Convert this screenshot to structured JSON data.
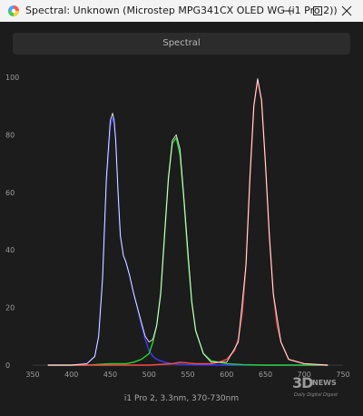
{
  "window": {
    "title": "Spectral: Unknown (Microstep MPG341CX OLED WG (i1 Pro 2))",
    "icon": "rainbow-circle-icon"
  },
  "tab": {
    "label": "Spectral"
  },
  "watermark": {
    "logo": "3D",
    "logo_suffix": "NEWS",
    "tagline": "Daily Digital Digest"
  },
  "chart_data": {
    "type": "line",
    "xlabel": "i1 Pro 2, 3.3nm, 370-730nm",
    "ylabel": "",
    "xlim": [
      350,
      750
    ],
    "ylim": [
      0,
      100
    ],
    "x_ticks": [
      350,
      400,
      450,
      500,
      550,
      600,
      650,
      700,
      750
    ],
    "y_ticks": [
      0,
      20,
      40,
      60,
      80,
      100
    ],
    "grid": false,
    "series": [
      {
        "color": "#ffffff",
        "x": [
          370,
          400,
          420,
          430,
          435,
          440,
          445,
          450,
          453,
          455,
          457,
          460,
          463,
          467,
          470,
          475,
          480,
          485,
          490,
          495,
          500,
          505,
          510,
          515,
          520,
          525,
          530,
          535,
          540,
          545,
          550,
          555,
          560,
          570,
          580,
          600,
          615,
          625,
          630,
          635,
          640,
          645,
          650,
          655,
          660,
          670,
          680,
          700,
          730
        ],
        "y": [
          0,
          0,
          0.5,
          3,
          10,
          30,
          65,
          85,
          87.5,
          85,
          78,
          60,
          45,
          38,
          36,
          31,
          25,
          20,
          15,
          10,
          8,
          9,
          14,
          25,
          45,
          65,
          78,
          80,
          75,
          58,
          40,
          22,
          12,
          4,
          1,
          1,
          8,
          35,
          65,
          90,
          99.5,
          92,
          70,
          45,
          25,
          8,
          2,
          0.5,
          0
        ]
      },
      {
        "color": "#3b3bff",
        "x": [
          370,
          400,
          420,
          430,
          435,
          440,
          445,
          450,
          453,
          455,
          457,
          460,
          463,
          467,
          470,
          475,
          480,
          485,
          490,
          495,
          500,
          505,
          510,
          520,
          530,
          550,
          600,
          650,
          730
        ],
        "y": [
          0,
          0,
          0.5,
          3,
          10,
          30,
          63,
          83,
          86,
          84,
          78,
          60,
          45,
          38,
          36,
          31,
          25,
          20,
          14,
          9,
          5,
          3,
          2,
          1,
          0.5,
          0.2,
          0,
          0,
          0
        ]
      },
      {
        "color": "#28d428",
        "x": [
          370,
          420,
          450,
          470,
          480,
          490,
          500,
          505,
          510,
          515,
          520,
          525,
          530,
          535,
          540,
          545,
          550,
          555,
          560,
          570,
          580,
          600,
          620,
          650,
          730
        ],
        "y": [
          0,
          0,
          0.5,
          0.5,
          1,
          2,
          4,
          8,
          14,
          25,
          45,
          65,
          77,
          79,
          73,
          57,
          38,
          22,
          12,
          4,
          1.5,
          0.5,
          0.2,
          0,
          0
        ]
      },
      {
        "color": "#ff4a4a",
        "x": [
          370,
          500,
          530,
          540,
          560,
          580,
          590,
          600,
          610,
          615,
          620,
          625,
          630,
          635,
          640,
          645,
          650,
          655,
          660,
          665,
          670,
          680,
          700,
          730
        ],
        "y": [
          0,
          0,
          0.5,
          1,
          0.5,
          0.5,
          1,
          2,
          5,
          9,
          18,
          35,
          65,
          90,
          99,
          92,
          70,
          45,
          25,
          14,
          8,
          2,
          0.5,
          0
        ]
      }
    ]
  }
}
